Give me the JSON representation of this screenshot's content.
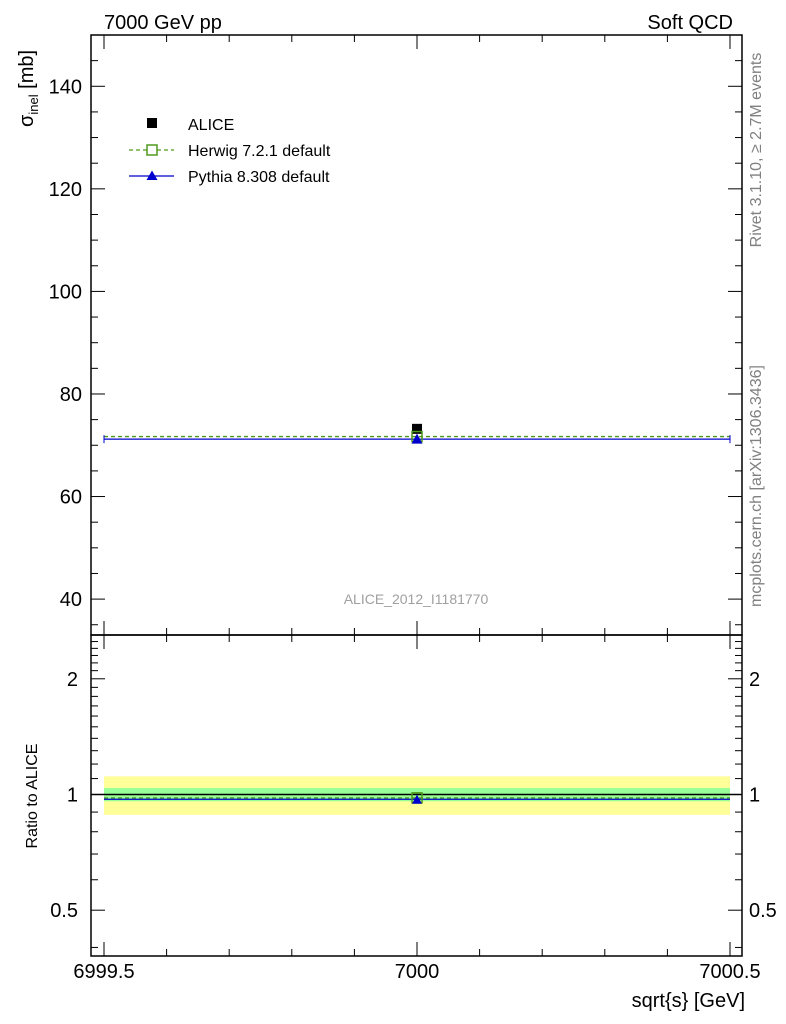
{
  "header": {
    "left": "7000 GeV pp",
    "right": "Soft QCD"
  },
  "side_text": {
    "rivet": "Rivet 3.1.10, ≥ 2.7M events",
    "mcplots": "mcplots.cern.ch [arXiv:1306.3436]"
  },
  "watermark": "ALICE_2012_I1181770",
  "colors": {
    "alice": "#000000",
    "herwig": "#4d9a1a",
    "pythia": "#0000cc",
    "band_inner": "#99ff99",
    "band_outer": "#ffff99"
  },
  "chart_data": [
    {
      "type": "scatter",
      "panel": "main",
      "xlabel": "sqrt{s} [GeV]",
      "ylabel_main": "σ",
      "ylabel_sub": "inel",
      "ylabel_unit": " [mb]",
      "xlim": [
        6999.5,
        7000.5
      ],
      "ylim": [
        33,
        150
      ],
      "yticks": [
        40,
        60,
        80,
        100,
        120,
        140
      ],
      "legend_position": "top-left",
      "series": [
        {
          "name": "ALICE",
          "x": [
            7000
          ],
          "y": [
            73.2
          ],
          "marker": "filled-square"
        },
        {
          "name": "Herwig 7.2.1 default",
          "x": [
            7000
          ],
          "y": [
            71.7
          ],
          "marker": "open-square",
          "line": "dashed"
        },
        {
          "name": "Pythia 8.308 default",
          "x": [
            7000
          ],
          "y": [
            71.2
          ],
          "marker": "triangle",
          "line": "solid"
        }
      ]
    },
    {
      "type": "scatter",
      "panel": "ratio",
      "ylabel": "Ratio to ALICE",
      "xlim": [
        6999.5,
        7000.5
      ],
      "ylim": [
        0.38,
        2.6
      ],
      "yscale": "log",
      "yticks": [
        0.5,
        1,
        2
      ],
      "yticklabels": [
        "0.5",
        "1",
        "2"
      ],
      "xticklabels": [
        "6999.5",
        "7000",
        "7000.5"
      ],
      "band_inner": [
        0.96,
        1.04
      ],
      "band_outer": [
        0.885,
        1.115
      ],
      "series": [
        {
          "name": "Herwig 7.2.1 default",
          "x": [
            7000
          ],
          "y": [
            0.98
          ]
        },
        {
          "name": "Pythia 8.308 default",
          "x": [
            7000
          ],
          "y": [
            0.972
          ]
        }
      ]
    }
  ]
}
